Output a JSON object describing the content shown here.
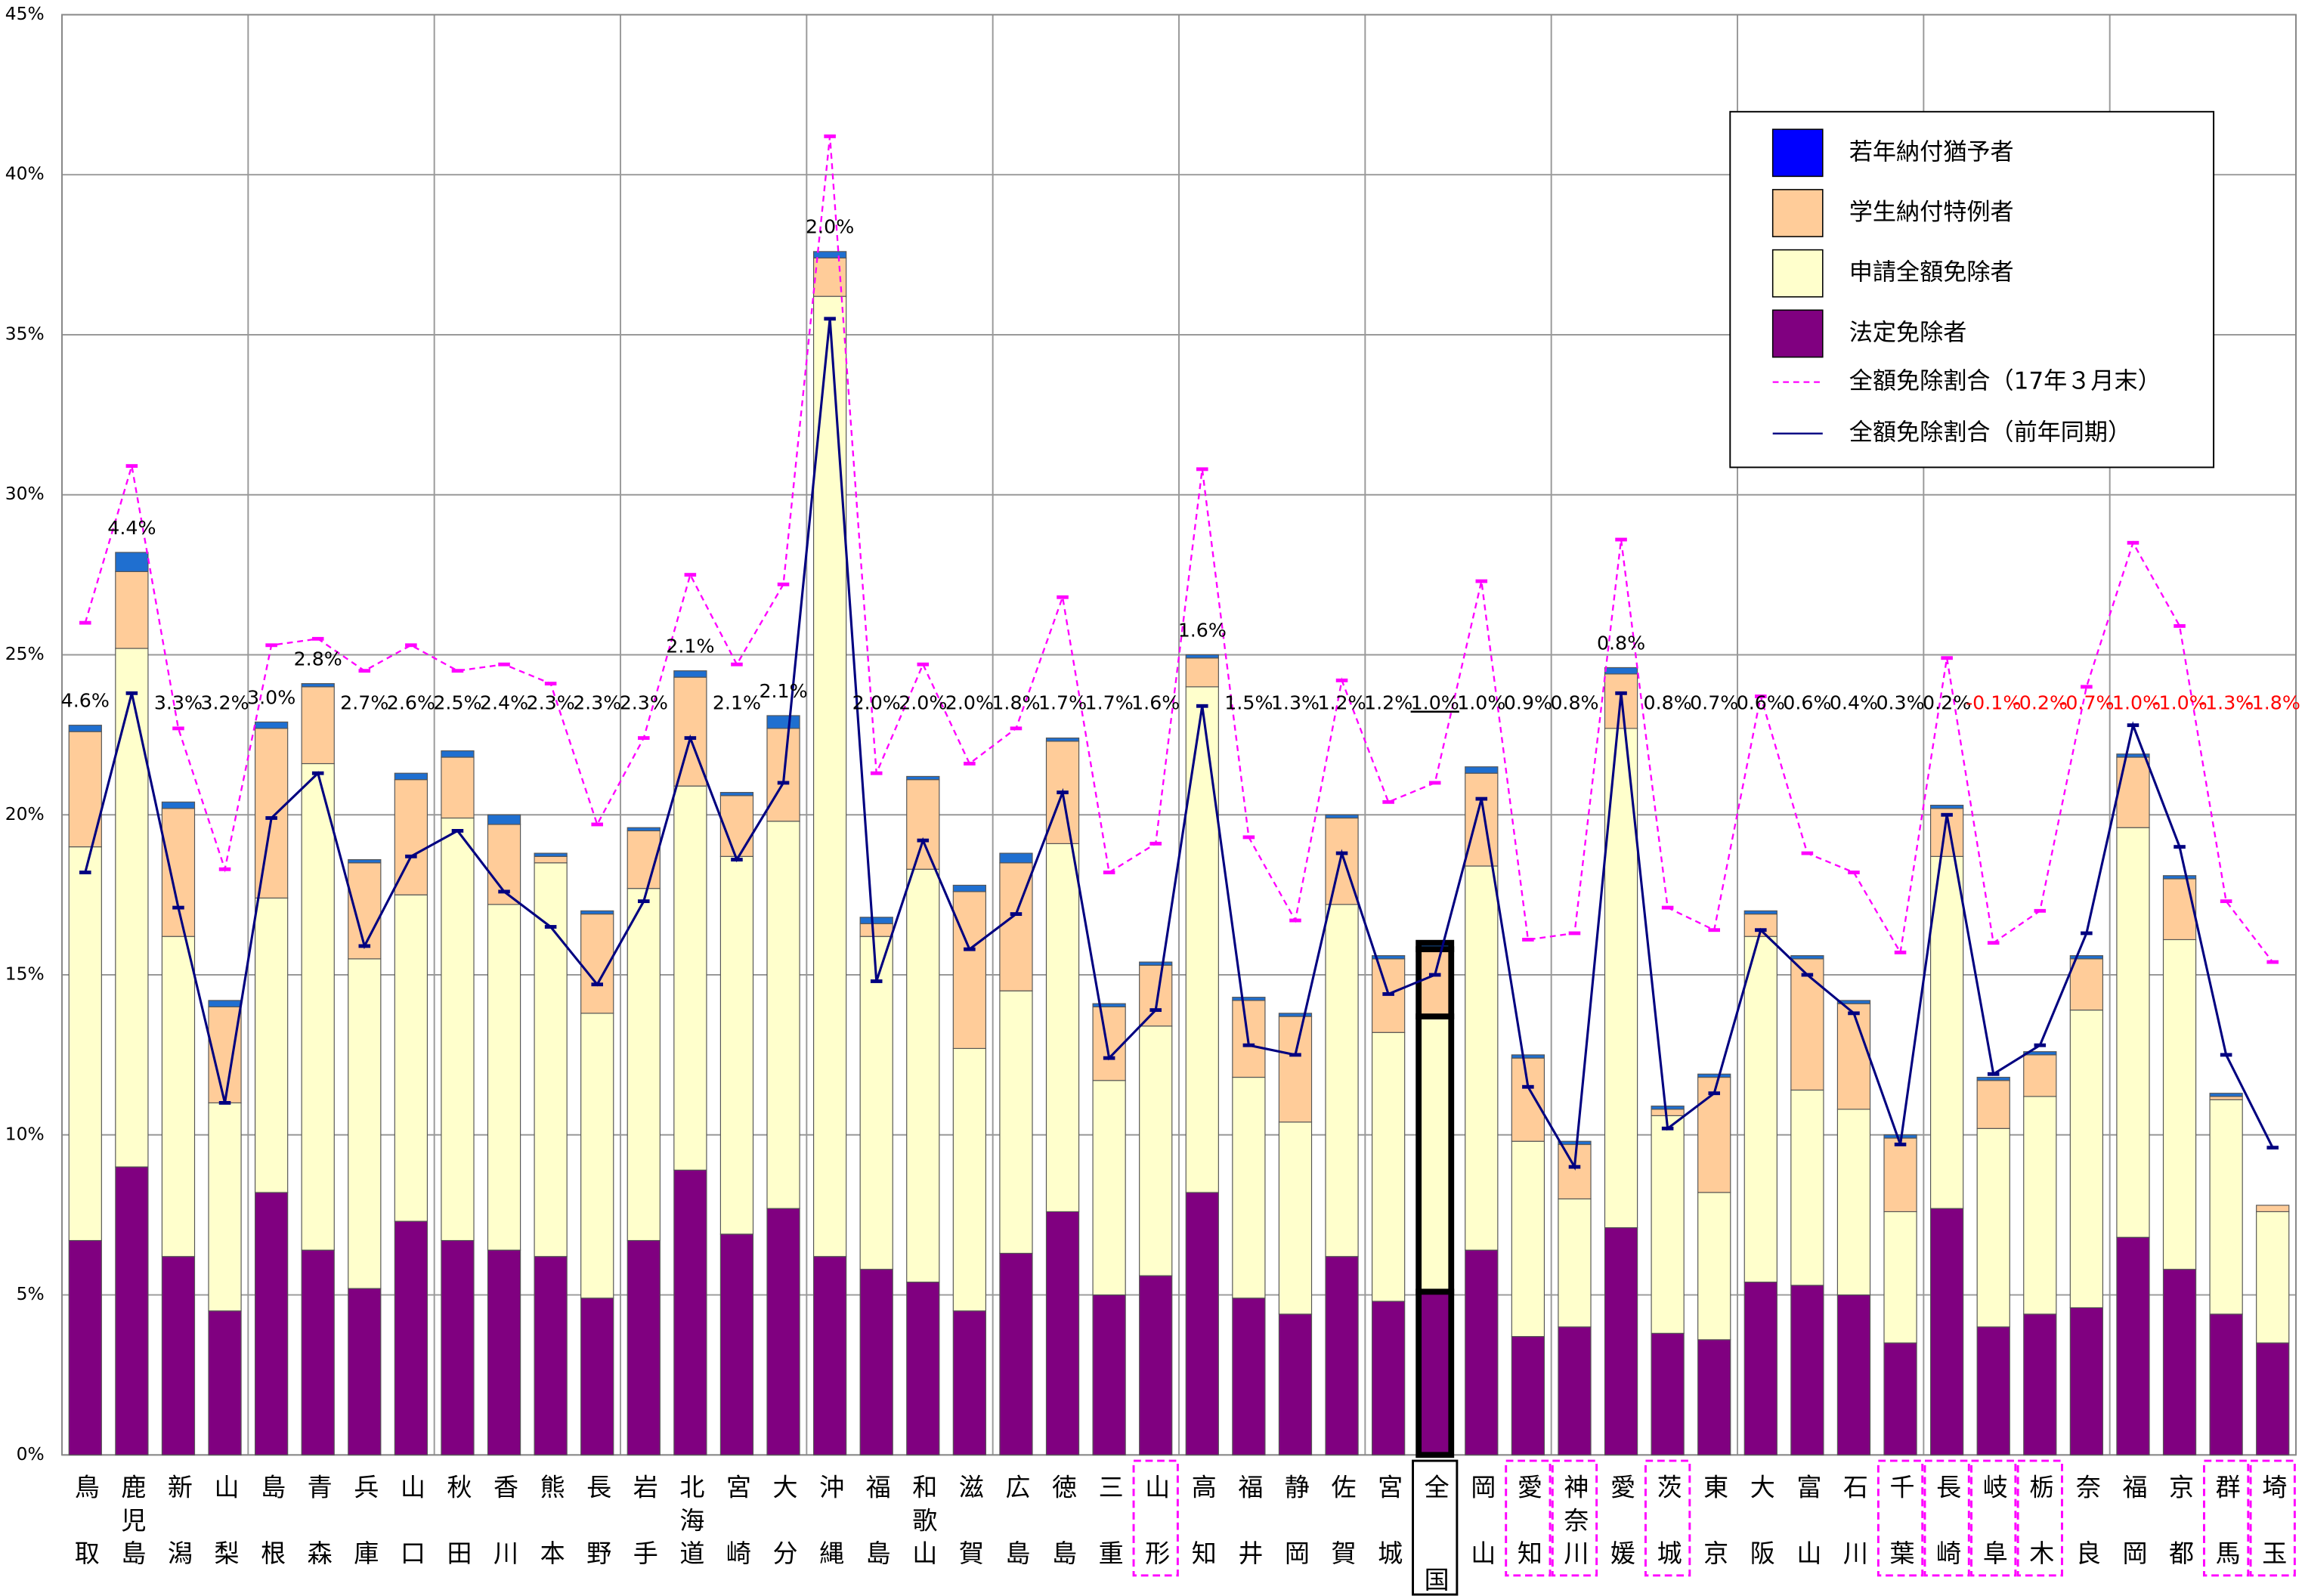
{
  "chart_data": {
    "type": "bar",
    "stacked": true,
    "categories": [
      "鳥取",
      "鹿児島",
      "新潟",
      "山梨",
      "島根",
      "青森",
      "兵庫",
      "山口",
      "秋田",
      "香川",
      "熊本",
      "長野",
      "岩手",
      "北海道",
      "宮崎",
      "大分",
      "沖縄",
      "福島",
      "和歌山",
      "滋賀",
      "広島",
      "徳島",
      "三重",
      "山形",
      "高知",
      "福井",
      "静岡",
      "佐賀",
      "宮城",
      "全国",
      "岡山",
      "愛知",
      "神奈川",
      "愛媛",
      "茨城",
      "東京",
      "大阪",
      "富山",
      "石川",
      "千葉",
      "長崎",
      "岐阜",
      "栃木",
      "奈良",
      "福岡",
      "京都",
      "群馬",
      "埼玉"
    ],
    "category_box": [
      null,
      null,
      null,
      null,
      null,
      null,
      null,
      null,
      null,
      null,
      null,
      null,
      null,
      null,
      null,
      null,
      null,
      null,
      null,
      null,
      null,
      null,
      null,
      "dashed",
      null,
      null,
      null,
      null,
      null,
      "solid",
      null,
      "dashed",
      "dashed",
      null,
      "dashed",
      null,
      null,
      null,
      null,
      "dashed",
      "dashed",
      "dashed",
      "dashed",
      null,
      null,
      null,
      "dashed",
      "dashed"
    ],
    "series": [
      {
        "name": "法定免除者",
        "color": "#800080",
        "values": [
          6.7,
          9.0,
          6.2,
          4.5,
          8.2,
          6.4,
          5.2,
          7.3,
          6.7,
          6.4,
          6.2,
          4.9,
          6.7,
          8.9,
          6.9,
          7.7,
          6.2,
          5.8,
          5.4,
          4.5,
          6.3,
          7.6,
          5.0,
          5.6,
          8.2,
          4.9,
          4.4,
          6.2,
          4.8,
          5.1,
          6.4,
          3.7,
          4.0,
          7.1,
          3.8,
          3.6,
          5.4,
          5.3,
          5.0,
          3.5,
          7.7,
          4.0,
          4.4,
          4.6,
          6.8,
          5.8,
          4.4,
          3.5
        ]
      },
      {
        "name": "申請全額免除者",
        "color": "#ffffcc",
        "values": [
          12.3,
          16.2,
          10.0,
          6.5,
          9.2,
          15.2,
          10.3,
          10.2,
          13.2,
          10.8,
          12.3,
          8.9,
          11.0,
          12.0,
          11.8,
          12.1,
          30.0,
          10.4,
          12.9,
          8.2,
          8.2,
          11.5,
          6.7,
          7.8,
          15.8,
          6.9,
          6.0,
          11.0,
          8.4,
          8.6,
          12.0,
          6.1,
          4.0,
          15.6,
          6.8,
          4.6,
          10.8,
          6.1,
          5.8,
          4.1,
          11.0,
          6.2,
          6.8,
          9.3,
          12.8,
          10.3,
          6.7,
          4.1
        ]
      },
      {
        "name": "学生納付特例者",
        "color": "#ffcc99",
        "values": [
          3.6,
          2.4,
          4.0,
          3.0,
          5.3,
          2.4,
          3.0,
          3.6,
          1.9,
          2.5,
          0.2,
          3.1,
          1.8,
          3.4,
          1.9,
          2.9,
          1.2,
          0.4,
          2.8,
          4.9,
          4.0,
          3.2,
          2.3,
          1.9,
          0.9,
          2.4,
          3.3,
          2.7,
          2.3,
          2.1,
          2.9,
          2.6,
          1.7,
          1.7,
          0.2,
          3.6,
          0.7,
          4.1,
          3.3,
          2.3,
          1.5,
          1.5,
          1.3,
          1.6,
          2.2,
          1.9,
          0.1,
          0.2
        ]
      },
      {
        "name": "若年納付猶予者",
        "color": "#1f6fd0",
        "values": [
          0.2,
          0.6,
          0.2,
          0.2,
          0.2,
          0.1,
          0.1,
          0.2,
          0.2,
          0.3,
          0.1,
          0.1,
          0.1,
          0.2,
          0.1,
          0.4,
          0.2,
          0.2,
          0.1,
          0.2,
          0.3,
          0.1,
          0.1,
          0.1,
          0.1,
          0.1,
          0.1,
          0.1,
          0.1,
          0.2,
          0.2,
          0.1,
          0.1,
          0.2,
          0.1,
          0.1,
          0.1,
          0.1,
          0.1,
          0.1,
          0.1,
          0.1,
          0.1,
          0.1,
          0.1,
          0.1,
          0.1,
          0.0
        ]
      },
      {
        "name": "全額免除割合（17年３月末）",
        "type": "line",
        "dashed": true,
        "color": "#ff00ff",
        "values": [
          26.0,
          30.9,
          22.7,
          18.3,
          25.3,
          25.5,
          24.5,
          25.3,
          24.5,
          24.7,
          24.1,
          19.7,
          22.4,
          27.5,
          24.7,
          27.2,
          41.2,
          21.3,
          24.7,
          21.6,
          22.7,
          26.8,
          18.2,
          19.1,
          30.8,
          19.3,
          16.7,
          24.2,
          20.4,
          21.0,
          27.3,
          16.1,
          16.3,
          28.6,
          17.1,
          16.4,
          23.7,
          18.8,
          18.2,
          15.7,
          24.9,
          16.0,
          17.0,
          24.0,
          28.5,
          25.9,
          17.3,
          15.4
        ]
      },
      {
        "name": "全額免除割合（前年同期）",
        "type": "line",
        "color": "#000080",
        "values": [
          18.2,
          23.8,
          17.1,
          11.0,
          19.9,
          21.3,
          15.9,
          18.7,
          19.5,
          17.6,
          16.5,
          14.7,
          17.3,
          22.4,
          18.6,
          21.0,
          35.5,
          14.8,
          19.2,
          15.8,
          16.9,
          20.7,
          12.4,
          13.9,
          23.4,
          12.8,
          12.5,
          18.8,
          14.4,
          15.0,
          20.5,
          11.5,
          9.0,
          23.8,
          10.2,
          11.3,
          16.4,
          15.0,
          13.8,
          9.7,
          20.0,
          11.9,
          12.8,
          16.3,
          22.8,
          19.0,
          12.5,
          9.6
        ]
      }
    ],
    "changes": {
      "values": [
        4.6,
        4.4,
        3.3,
        3.2,
        3.0,
        2.8,
        2.7,
        2.6,
        2.5,
        2.4,
        2.3,
        2.3,
        2.3,
        2.1,
        2.1,
        2.1,
        2.0,
        2.0,
        2.0,
        2.0,
        1.8,
        1.7,
        1.7,
        1.6,
        1.6,
        1.5,
        1.3,
        1.2,
        1.2,
        1.0,
        1.0,
        0.9,
        0.8,
        0.8,
        0.8,
        0.7,
        0.6,
        0.6,
        0.4,
        0.3,
        0.2,
        -0.1,
        -0.2,
        -0.7,
        -1.0,
        -1.0,
        -1.3,
        -1.8
      ],
      "value_labels": [
        "4.6%",
        "4.4%",
        "3.3%",
        "3.2%",
        "3.0%",
        "2.8%",
        "2.7%",
        "2.6%",
        "2.5%",
        "2.4%",
        "2.3%",
        "2.3%",
        "2.3%",
        "2.1%",
        "2.1%",
        "2.1%",
        "2.0%",
        "2.0%",
        "2.0%",
        "2.0%",
        "1.8%",
        "1.7%",
        "1.7%",
        "1.6%",
        "1.6%",
        "1.5%",
        "1.3%",
        "1.2%",
        "1.2%",
        "1.0%",
        "1.0%",
        "0.9%",
        "0.8%",
        "0.8%",
        "0.8%",
        "0.7%",
        "0.6%",
        "0.6%",
        "0.4%",
        "0.3%",
        "0.2%",
        "-0.1%",
        "-0.2%",
        "-0.7%",
        "-1.0%",
        "-1.0%",
        "-1.3%",
        "-1.8%"
      ]
    },
    "ylim": [
      0,
      45
    ],
    "yticks": [
      {
        "value": 0,
        "label": "0%"
      },
      {
        "value": 5,
        "label": "5%"
      },
      {
        "value": 10,
        "label": "10%"
      },
      {
        "value": 15,
        "label": "15%"
      },
      {
        "value": 20,
        "label": "20%"
      },
      {
        "value": 25,
        "label": "25%"
      },
      {
        "value": 30,
        "label": "30%"
      },
      {
        "value": 35,
        "label": "35%"
      },
      {
        "value": 40,
        "label": "40%"
      },
      {
        "value": 45,
        "label": "45%"
      }
    ],
    "grid": true
  }
}
